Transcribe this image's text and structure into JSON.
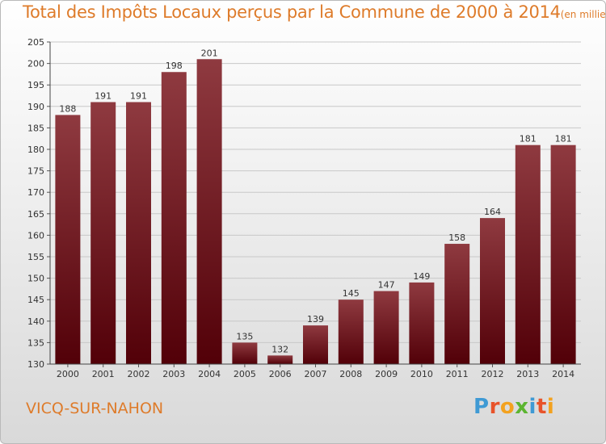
{
  "title": "Total des Impôts Locaux perçus par la Commune de 2000 à 2014",
  "unit_note": "(en milliers d'€)",
  "commune": "VICQ-SUR-NAHON",
  "logo": {
    "text": "Proxiti",
    "letters": [
      {
        "char": "P",
        "color": "#3f9ad4"
      },
      {
        "char": "r",
        "color": "#e8532a"
      },
      {
        "char": "o",
        "color": "#f3a21f"
      },
      {
        "char": "x",
        "color": "#5cb531"
      },
      {
        "char": "i",
        "color": "#3f9ad4"
      },
      {
        "char": "t",
        "color": "#e8532a"
      },
      {
        "char": "i",
        "color": "#f3a21f"
      }
    ]
  },
  "colors": {
    "bar_top": "#8f3a40",
    "bar_bottom": "#520008",
    "accent": "#de7b2a",
    "grid": "#c8c8c8"
  },
  "chart_data": {
    "type": "bar",
    "title": "Total des Impôts Locaux perçus par la Commune de 2000 à 2014",
    "xlabel": "",
    "ylabel": "",
    "unit": "milliers d'€",
    "categories": [
      "2000",
      "2001",
      "2002",
      "2003",
      "2004",
      "2005",
      "2006",
      "2007",
      "2008",
      "2009",
      "2010",
      "2011",
      "2012",
      "2013",
      "2014"
    ],
    "values": [
      188,
      191,
      191,
      198,
      201,
      135,
      132,
      139,
      145,
      147,
      149,
      158,
      164,
      181,
      181
    ],
    "ylim": [
      130,
      205
    ],
    "yticks": [
      130,
      135,
      140,
      145,
      150,
      155,
      160,
      165,
      170,
      175,
      180,
      185,
      190,
      195,
      200,
      205
    ],
    "grid": true,
    "data_labels": true
  }
}
